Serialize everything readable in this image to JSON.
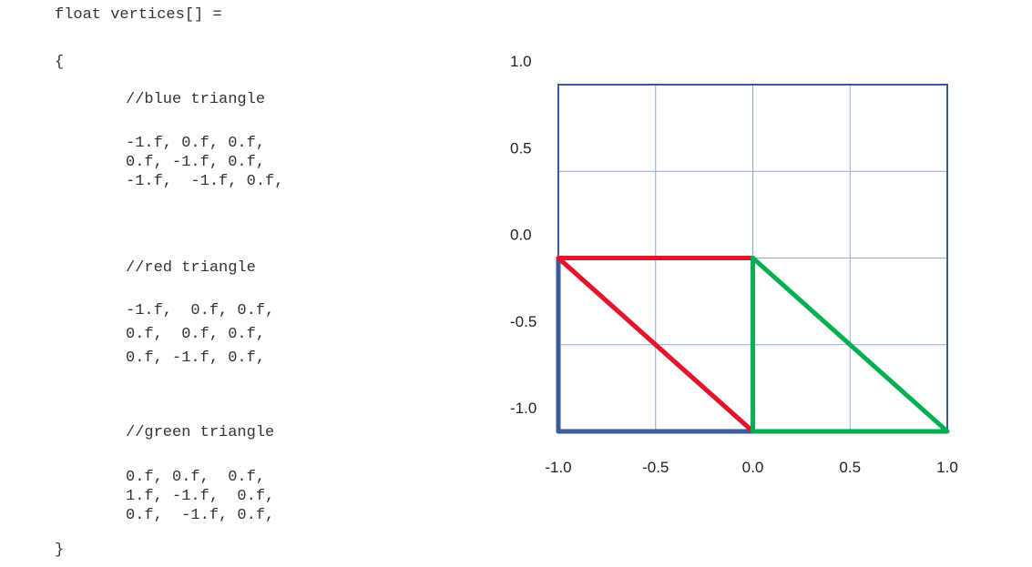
{
  "code": {
    "declaration": "float vertices[] =",
    "open_brace": "{",
    "close_brace": "}",
    "blocks": [
      {
        "comment": "//blue triangle",
        "lines": [
          "-1.f, 0.f, 0.f,",
          "0.f, -1.f, 0.f,",
          "-1.f,  -1.f, 0.f,"
        ]
      },
      {
        "comment": "//red triangle",
        "lines": [
          "-1.f,  0.f, 0.f,",
          "0.f,  0.f, 0.f,",
          "0.f, -1.f, 0.f,"
        ]
      },
      {
        "comment": "//green triangle",
        "lines": [
          "0.f, 0.f,  0.f,",
          "1.f, -1.f,  0.f,",
          "0.f,  -1.f, 0.f,"
        ]
      }
    ]
  },
  "chart_data": {
    "type": "diagram",
    "xlim": [
      -1.0,
      1.0
    ],
    "ylim": [
      -1.0,
      1.0
    ],
    "x_ticks": [
      {
        "value": -1.0,
        "label": "-1.0"
      },
      {
        "value": -0.5,
        "label": "-0.5"
      },
      {
        "value": 0.0,
        "label": "0.0"
      },
      {
        "value": 0.5,
        "label": "0.5"
      },
      {
        "value": 1.0,
        "label": "1.0"
      }
    ],
    "y_tick_labels": [
      {
        "label": "1.0"
      },
      {
        "label": "0.5"
      },
      {
        "label": "0.0"
      },
      {
        "label": "-0.5"
      },
      {
        "label": "-1.0"
      }
    ],
    "grid": true,
    "colors": {
      "frame": "#3b5a9c",
      "grid": "#8eaadb",
      "blue": "#3b5a9c",
      "red": "#e8132a",
      "green": "#00b050"
    },
    "triangles": [
      {
        "color": "blue",
        "vertices": [
          [
            -1.0,
            0.0
          ],
          [
            0.0,
            -1.0
          ],
          [
            -1.0,
            -1.0
          ]
        ]
      },
      {
        "color": "red",
        "vertices": [
          [
            -1.0,
            0.0
          ],
          [
            0.0,
            0.0
          ],
          [
            0.0,
            -1.0
          ]
        ]
      },
      {
        "color": "green",
        "vertices": [
          [
            0.0,
            0.0
          ],
          [
            1.0,
            -1.0
          ],
          [
            0.0,
            -1.0
          ]
        ]
      }
    ]
  }
}
